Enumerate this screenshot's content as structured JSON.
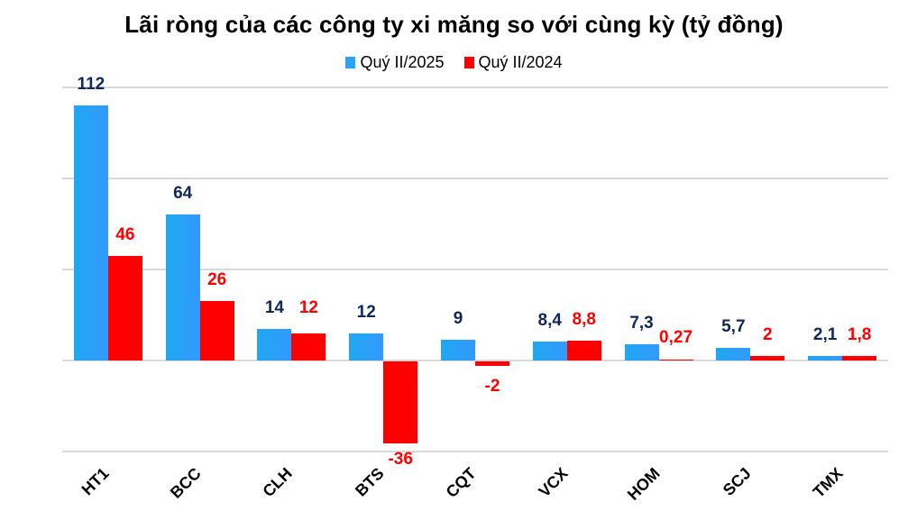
{
  "chart_data": {
    "type": "bar",
    "title": "Lãi ròng của các công ty xi măng so với cùng kỳ (tỷ đồng)",
    "xlabel": "",
    "ylabel": "",
    "ylim": [
      -40,
      120
    ],
    "grid": true,
    "gridlines": [
      120,
      80,
      40,
      0,
      -40
    ],
    "legend_position": "top",
    "categories": [
      "HT1",
      "BCC",
      "CLH",
      "BTS",
      "CQT",
      "VCX",
      "HOM",
      "SCJ",
      "TMX"
    ],
    "series": [
      {
        "name": "Quý II/2025",
        "color": "#3399ff",
        "values": [
          112,
          64,
          14,
          12,
          9,
          8.4,
          7.3,
          5.7,
          2.1
        ],
        "labels": [
          "112",
          "64",
          "14",
          "12",
          "9",
          "8,4",
          "7,3",
          "5,7",
          "2,1"
        ]
      },
      {
        "name": "Quý II/2024",
        "color": "#ff0000",
        "values": [
          46,
          26,
          12,
          -36,
          -2,
          8.8,
          0.27,
          2,
          1.8
        ],
        "labels": [
          "46",
          "26",
          "12",
          "-36",
          "-2",
          "8,8",
          "0,27",
          "2",
          "1,8"
        ]
      }
    ]
  },
  "legend": {
    "items": [
      {
        "label": "Quý II/2025",
        "color": "#3399ff"
      },
      {
        "label": "Quý II/2024",
        "color": "#ff0000"
      }
    ]
  }
}
